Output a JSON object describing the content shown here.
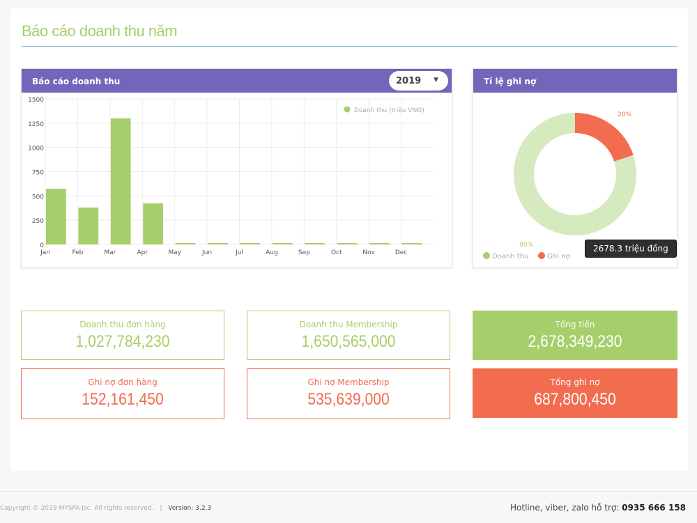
{
  "page": {
    "title": "Báo cáo doanh thu năm"
  },
  "revenue_card": {
    "title": "Báo cáo doanh thu",
    "year_select": "2019"
  },
  "debt_card": {
    "title": "Tỉ lệ ghi nợ",
    "tooltip": "2678.3 triệu đồng"
  },
  "chart_data": [
    {
      "type": "bar",
      "categories": [
        "Jan",
        "Feb",
        "Mar",
        "Apr",
        "May",
        "Jun",
        "Jul",
        "Aug",
        "Sep",
        "Oct",
        "Nov",
        "Dec"
      ],
      "series": [
        {
          "name": "Doanh thu (triệu VNĐ)",
          "values": [
            574,
            380,
            1299,
            423,
            1,
            1,
            1,
            1,
            1,
            1,
            1,
            1
          ]
        }
      ],
      "ylim": [
        0,
        1500
      ],
      "yticks": [
        "0",
        "250",
        "500",
        "750",
        "1000",
        "1250",
        "1500"
      ],
      "grid": true,
      "legend": "top-right",
      "color": "#a6cf6b"
    },
    {
      "type": "pie",
      "donut": true,
      "categories": [
        "Doanh thu",
        "Ghi nợ"
      ],
      "values": [
        80,
        20
      ],
      "labels": [
        "80%",
        "20%"
      ],
      "colors": [
        "#d6eabf",
        "#f26c4f"
      ],
      "legend_colors": [
        "#a6cf6b",
        "#f26c4f"
      ],
      "legend": "bottom-left"
    }
  ],
  "stats": [
    {
      "label": "Doanh thu đơn hàng",
      "value": "1,027,784,230"
    },
    {
      "label": "Doanh thu Membership",
      "value": "1,650,565,000"
    },
    {
      "label": "Tổng tiền",
      "value": "2,678,349,230"
    },
    {
      "label": "Ghi nợ đơn hàng",
      "value": "152,161,450"
    },
    {
      "label": "Ghi nợ Membership",
      "value": "535,639,000"
    },
    {
      "label": "Tổng ghi nợ",
      "value": "687,800,450"
    }
  ],
  "footer": {
    "copyright": "Copyright © 2019 MYSPA Jsc. All rights reserved.",
    "separator": "|",
    "version": "Version: 3.2.3",
    "hotline_label": "Hotline, viber, zalo hỗ trợ:",
    "hotline": "0935 666 158"
  }
}
